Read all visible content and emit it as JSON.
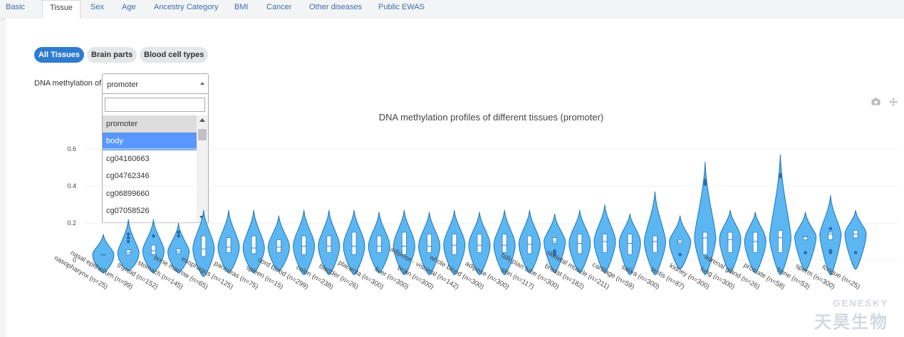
{
  "tabs": [
    "Basic",
    "Tissue",
    "Sex",
    "Age",
    "Ancestry Category",
    "BMI",
    "Cancer",
    "Other diseases",
    "Public EWAS"
  ],
  "active_tab": "Tissue",
  "filter_pills": [
    {
      "label": "All Tissues",
      "active": true
    },
    {
      "label": "Brain parts",
      "active": false
    },
    {
      "label": "Blood cell types",
      "active": false
    }
  ],
  "selector": {
    "label": "DNA methylation of",
    "value": "promoter",
    "search_value": "",
    "options": [
      "promoter",
      "body",
      "cg04160663",
      "cg04762346",
      "cg06899660",
      "cg07058526"
    ],
    "selected_option": "promoter",
    "highlighted_option": "body"
  },
  "modebar": {
    "icons": [
      "camera-icon",
      "pan-icon"
    ]
  },
  "watermark": {
    "text": "天昊生物",
    "brand": "GENESKY"
  },
  "colors": {
    "accent": "#2f7bd0",
    "violin_fill": "#5cb6f2",
    "violin_stroke": "#1f77b4",
    "highlight": "#5897fb"
  },
  "chart_data": {
    "type": "violin",
    "title": "DNA methylation profiles of different tissues (promoter)",
    "xlabel": "",
    "ylabel": "",
    "ylim": [
      -0.08,
      0.66
    ],
    "yticks": [
      "0",
      "0.2",
      "0.4",
      "0.6"
    ],
    "ytick_values": [
      0,
      0.2,
      0.4,
      0.6
    ],
    "grid": true,
    "categories": [
      {
        "name": "nasopharynx (n=25)",
        "min": -0.07,
        "max": 0.14,
        "q1": 0.028,
        "median": 0.03,
        "q3": 0.032,
        "outliers": []
      },
      {
        "name": "nasal epithelium (n=99)",
        "min": -0.06,
        "max": 0.22,
        "q1": 0.03,
        "median": 0.04,
        "q3": 0.055,
        "outliers": [
          0.1,
          0.12,
          0.14
        ]
      },
      {
        "name": "thyroid (n=152)",
        "min": -0.07,
        "max": 0.22,
        "q1": 0.03,
        "median": 0.05,
        "q3": 0.08,
        "outliers": [
          0.13
        ]
      },
      {
        "name": "stomach (n=145)",
        "min": -0.07,
        "max": 0.2,
        "q1": 0.035,
        "median": 0.045,
        "q3": 0.06,
        "outliers": [
          0.13,
          0.15
        ]
      },
      {
        "name": "bone marrow (n=65)",
        "min": -0.09,
        "max": 0.27,
        "q1": 0.02,
        "median": 0.06,
        "q3": 0.13,
        "outliers": []
      },
      {
        "name": "esophagus (n=125)",
        "min": -0.07,
        "max": 0.27,
        "q1": 0.04,
        "median": 0.07,
        "q3": 0.12,
        "outliers": []
      },
      {
        "name": "pancreas (n=75)",
        "min": -0.07,
        "max": 0.27,
        "q1": 0.035,
        "median": 0.065,
        "q3": 0.13,
        "outliers": []
      },
      {
        "name": "spleen (n=15)",
        "min": -0.06,
        "max": 0.24,
        "q1": 0.04,
        "median": 0.07,
        "q3": 0.11,
        "outliers": []
      },
      {
        "name": "cord blood (n=299)",
        "min": -0.08,
        "max": 0.27,
        "q1": 0.03,
        "median": 0.075,
        "q3": 0.13,
        "outliers": []
      },
      {
        "name": "colon (n=238)",
        "min": -0.08,
        "max": 0.27,
        "q1": 0.04,
        "median": 0.075,
        "q3": 0.13,
        "outliers": []
      },
      {
        "name": "bladder (n=26)",
        "min": -0.08,
        "max": 0.27,
        "q1": 0.03,
        "median": 0.075,
        "q3": 0.15,
        "outliers": []
      },
      {
        "name": "placenta (n=300)",
        "min": -0.07,
        "max": 0.26,
        "q1": 0.04,
        "median": 0.075,
        "q3": 0.13,
        "outliers": []
      },
      {
        "name": "liver (n=300)",
        "min": -0.08,
        "max": 0.27,
        "q1": 0.03,
        "median": 0.075,
        "q3": 0.15,
        "outliers": []
      },
      {
        "name": "brain (n=300)",
        "min": -0.08,
        "max": 0.26,
        "q1": 0.04,
        "median": 0.075,
        "q3": 0.14,
        "outliers": []
      },
      {
        "name": "adipose - visceral (n=142)",
        "min": -0.08,
        "max": 0.27,
        "q1": 0.03,
        "median": 0.08,
        "q3": 0.14,
        "outliers": []
      },
      {
        "name": "whole blood (n=300)",
        "min": -0.08,
        "max": 0.26,
        "q1": 0.04,
        "median": 0.08,
        "q3": 0.14,
        "outliers": []
      },
      {
        "name": "adipose (n=300)",
        "min": -0.08,
        "max": 0.27,
        "q1": 0.04,
        "median": 0.08,
        "q3": 0.14,
        "outliers": []
      },
      {
        "name": "skin (n=117)",
        "min": -0.07,
        "max": 0.27,
        "q1": 0.035,
        "median": 0.085,
        "q3": 0.13,
        "outliers": []
      },
      {
        "name": "fallopian tube (n=300)",
        "min": -0.07,
        "max": 0.25,
        "q1": 0.09,
        "median": 0.1,
        "q3": 0.12,
        "outliers": [
          0.03,
          0.04,
          0.05
        ]
      },
      {
        "name": "breast (n=182)",
        "min": -0.07,
        "max": 0.27,
        "q1": 0.035,
        "median": 0.09,
        "q3": 0.14,
        "outliers": []
      },
      {
        "name": "skeletal muscle (n=211)",
        "min": -0.07,
        "max": 0.3,
        "q1": 0.04,
        "median": 0.1,
        "q3": 0.14,
        "outliers": []
      },
      {
        "name": "cartilage (n=59)",
        "min": -0.08,
        "max": 0.25,
        "q1": 0.03,
        "median": 0.09,
        "q3": 0.14,
        "outliers": []
      },
      {
        "name": "saliva (n=300)",
        "min": -0.08,
        "max": 0.37,
        "q1": 0.04,
        "median": 0.1,
        "q3": 0.13,
        "outliers": []
      },
      {
        "name": "testis (n=87)",
        "min": -0.05,
        "max": 0.24,
        "q1": 0.09,
        "median": 0.1,
        "q3": 0.11,
        "outliers": [
          0.03
        ]
      },
      {
        "name": "kidney (n=300)",
        "min": -0.08,
        "max": 0.53,
        "q1": 0.03,
        "median": 0.12,
        "q3": 0.15,
        "outliers": [
          0.42,
          0.41,
          0.43
        ]
      },
      {
        "name": "lung (n=300)",
        "min": -0.07,
        "max": 0.27,
        "q1": 0.04,
        "median": 0.11,
        "q3": 0.15,
        "outliers": []
      },
      {
        "name": "adrenal gland (n=26)",
        "min": -0.07,
        "max": 0.26,
        "q1": 0.04,
        "median": 0.1,
        "q3": 0.15,
        "outliers": []
      },
      {
        "name": "prostate (n=58)",
        "min": -0.08,
        "max": 0.57,
        "q1": 0.04,
        "median": 0.12,
        "q3": 0.16,
        "outliers": [
          0.45,
          0.46
        ]
      },
      {
        "name": "bone (n=53)",
        "min": -0.06,
        "max": 0.26,
        "q1": 0.11,
        "median": 0.125,
        "q3": 0.13,
        "outliers": [
          0.04
        ]
      },
      {
        "name": "sperm (n=300)",
        "min": -0.08,
        "max": 0.35,
        "q1": 0.11,
        "median": 0.14,
        "q3": 0.15,
        "outliers": [
          0.04,
          0.05,
          0.17
        ]
      },
      {
        "name": "tongue (n=25)",
        "min": -0.05,
        "max": 0.27,
        "q1": 0.12,
        "median": 0.14,
        "q3": 0.16,
        "outliers": [
          0.04
        ]
      }
    ]
  }
}
